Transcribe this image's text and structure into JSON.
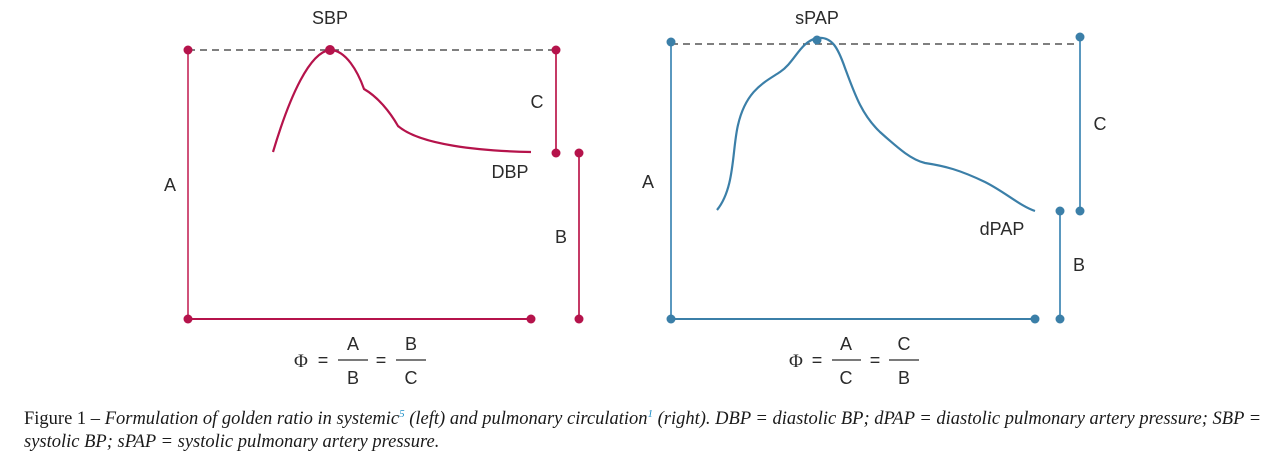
{
  "colors": {
    "systemic": "#b5134b",
    "pulmonary": "#3b7fa8",
    "dashed": "#555555",
    "text": "#2b2b2b",
    "reference": "#1f8fc7"
  },
  "left_panel": {
    "peak_label": "SBP",
    "trough_label": "DBP",
    "segment_a": "A",
    "segment_b": "B",
    "segment_c": "C",
    "formula": {
      "phi": "Φ",
      "eq1": "=",
      "num1": "A",
      "den1": "B",
      "eq2": "=",
      "num2": "B",
      "den2": "C"
    }
  },
  "right_panel": {
    "peak_label": "sPAP",
    "trough_label": "dPAP",
    "segment_a": "A",
    "segment_b": "B",
    "segment_c": "C",
    "formula": {
      "phi": "Φ",
      "eq1": "=",
      "num1": "A",
      "den1": "C",
      "eq2": "=",
      "num2": "C",
      "den2": "B"
    }
  },
  "caption": {
    "label": "Figure 1 – ",
    "text_1": "Formulation of golden ratio in systemic",
    "ref_1": "5",
    "text_2": " (left) and pulmonary circulation",
    "ref_2": "1",
    "text_3": " (right). DBP = diastolic BP; dPAP = diastolic pulmonary artery pressure; SBP = systolic BP; sPAP = systolic pulmonary artery pressure."
  }
}
